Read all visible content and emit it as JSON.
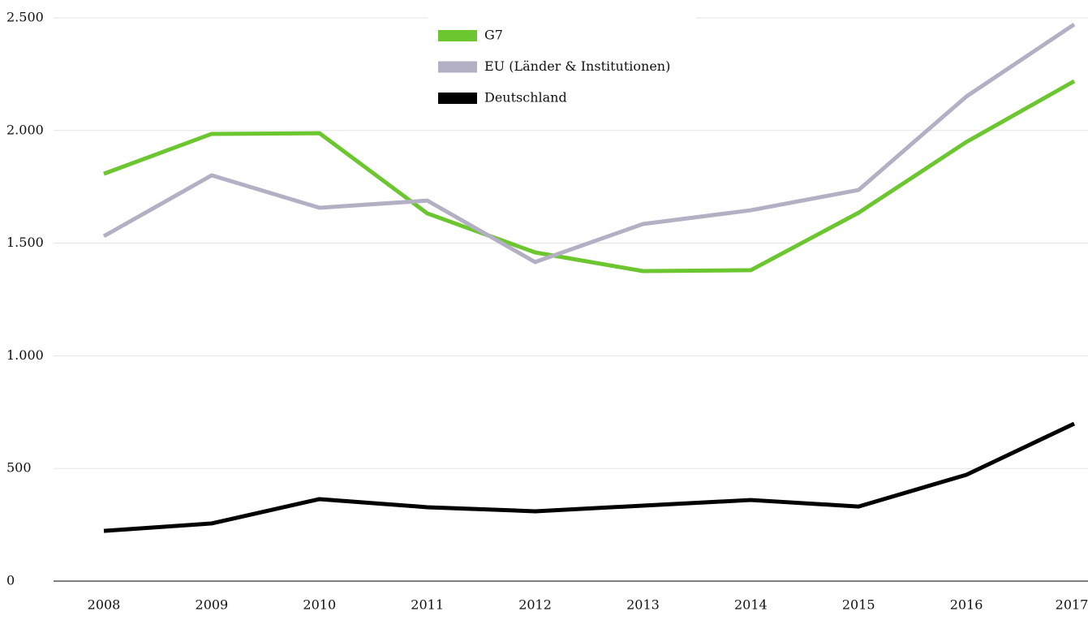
{
  "chart_data": {
    "type": "line",
    "categories": [
      "2008",
      "2009",
      "2010",
      "2011",
      "2012",
      "2013",
      "2014",
      "2015",
      "2016",
      "2017"
    ],
    "series": [
      {
        "name": "G7",
        "color": "#6cc62f",
        "values": [
          1808,
          1985,
          1988,
          1632,
          1459,
          1376,
          1380,
          1635,
          1949,
          2219
        ]
      },
      {
        "name": "EU (Länder & Institutionen)",
        "color": "#b3b0c4",
        "values": [
          1531,
          1801,
          1657,
          1689,
          1416,
          1585,
          1646,
          1736,
          2151,
          2471
        ]
      },
      {
        "name": "Deutschland",
        "color": "#000000",
        "values": [
          223,
          256,
          364,
          328,
          310,
          335,
          360,
          331,
          472,
          699
        ]
      }
    ],
    "ylim": [
      0,
      2500
    ],
    "yticks": [
      0,
      500,
      {
        "value": 1000,
        "label": "1.000"
      },
      {
        "value": 1500,
        "label": "1.500"
      },
      {
        "value": 2000,
        "label": "2.000"
      },
      {
        "value": 2500,
        "label": "2.500"
      }
    ],
    "grid": true,
    "legend": "top"
  }
}
